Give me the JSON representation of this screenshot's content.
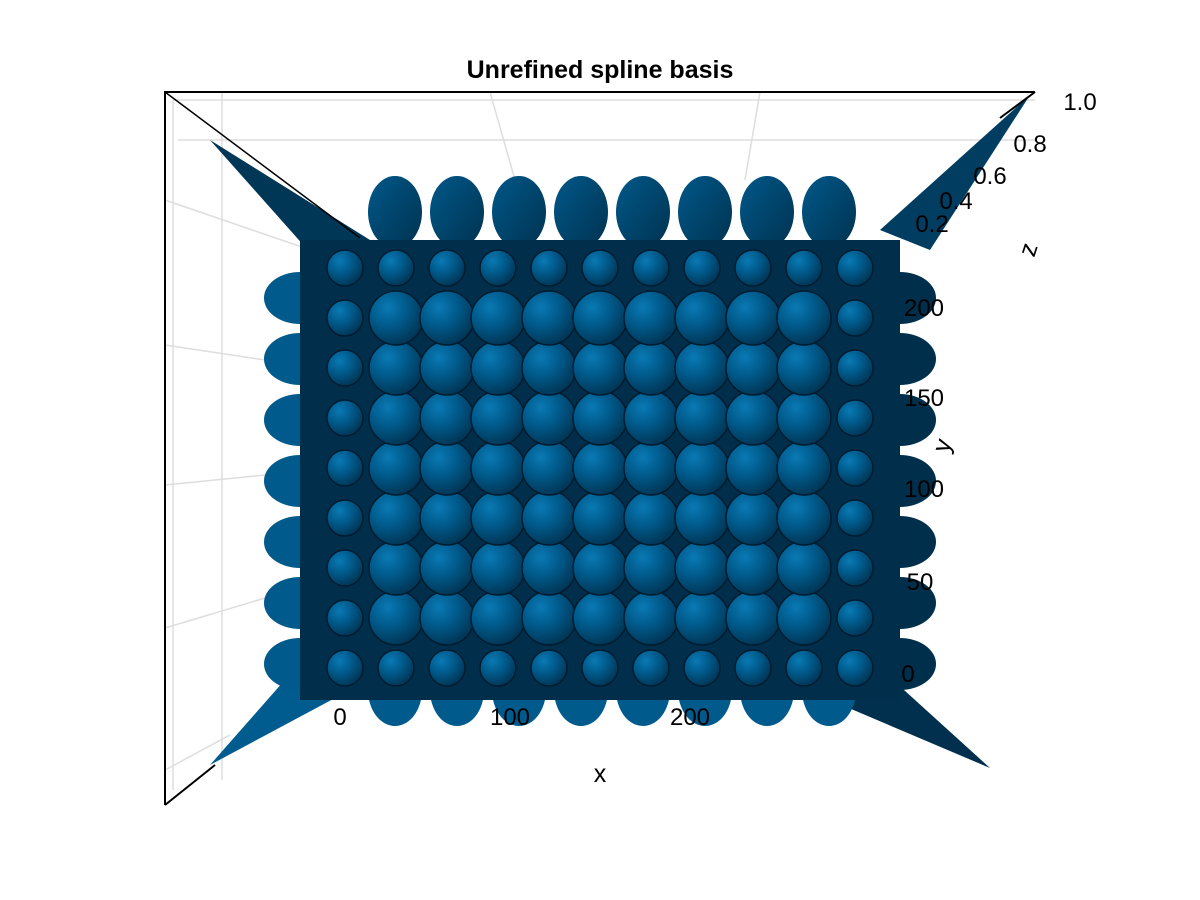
{
  "chart_data": {
    "type": "surface",
    "title": "Unrefined spline basis",
    "xlabel": "x",
    "ylabel": "y",
    "zlabel": "z",
    "xticks": [
      "0",
      "100",
      "200"
    ],
    "yticks": [
      "0",
      "50",
      "100",
      "150",
      "200"
    ],
    "zticks": [
      "0.2",
      "0.4",
      "0.6",
      "0.8",
      "1.0"
    ],
    "xlim": [
      0,
      300
    ],
    "ylim": [
      0,
      240
    ],
    "zlim": [
      0,
      1
    ],
    "basis_grid": {
      "nx": 11,
      "ny": 9
    },
    "color": "#005b8c",
    "dark_color": "#002f4c",
    "grid": true
  }
}
